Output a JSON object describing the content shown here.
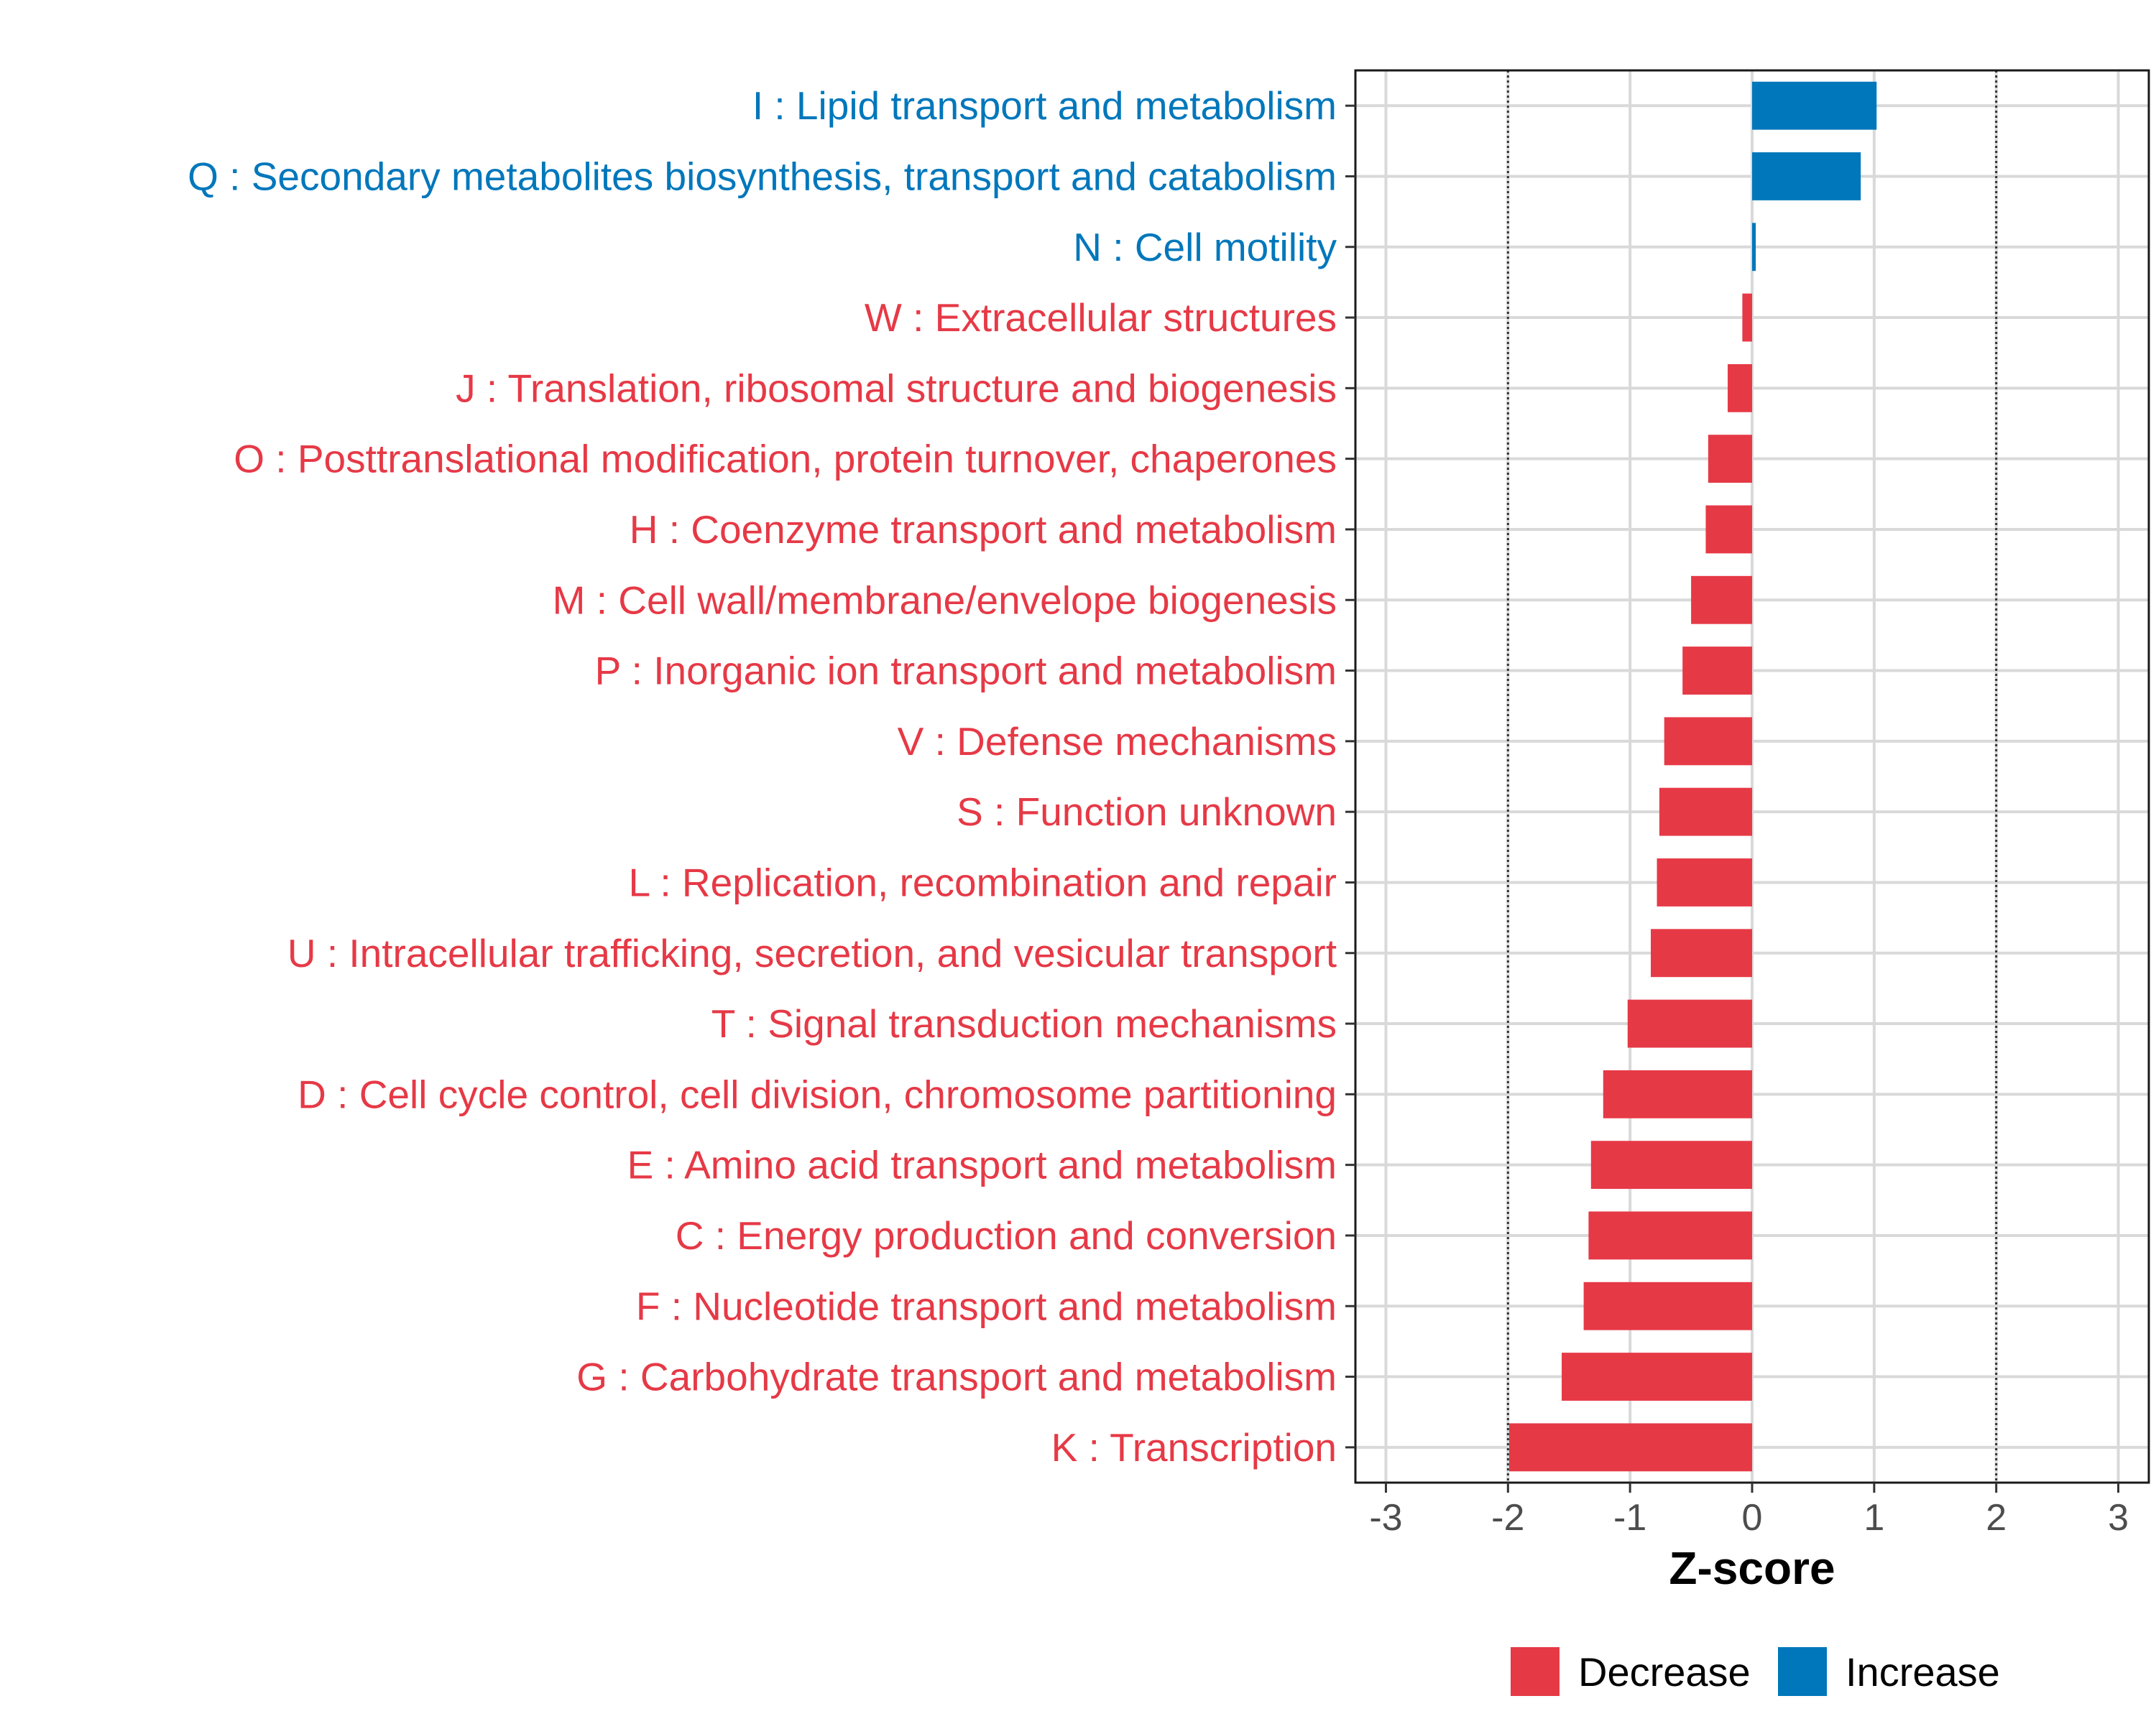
{
  "chart_data": {
    "type": "bar",
    "orientation": "horizontal",
    "xlabel": "Z-score",
    "xlim": [
      -3.25,
      3.25
    ],
    "xticks": [
      -3,
      -2,
      -1,
      0,
      1,
      2,
      3
    ],
    "xtick_labels": [
      "-3",
      "-2",
      "-1",
      "0",
      "1",
      "2",
      "3"
    ],
    "reference_lines": [
      -2,
      2
    ],
    "grid": true,
    "legend_position": "bottom",
    "colors": {
      "Decrease": "#E63946",
      "Increase": "#0077BB",
      "grid": "#d9d9d9",
      "refline": "#333333"
    },
    "legend": [
      {
        "label": "Decrease",
        "color": "#E63946"
      },
      {
        "label": "Increase",
        "color": "#0077BB"
      }
    ],
    "categories": [
      "I : Lipid transport and metabolism",
      "Q : Secondary metabolites biosynthesis, transport and catabolism",
      "N : Cell motility",
      "W : Extracellular structures",
      "J : Translation, ribosomal structure and biogenesis",
      "O : Posttranslational modification, protein turnover, chaperones",
      "H : Coenzyme transport and metabolism",
      "M : Cell wall/membrane/envelope biogenesis",
      "P : Inorganic ion transport and metabolism",
      "V : Defense mechanisms",
      "S : Function unknown",
      "L : Replication, recombination and repair",
      "U : Intracellular trafficking, secretion, and vesicular transport",
      "T : Signal transduction mechanisms",
      "D : Cell cycle control, cell division, chromosome partitioning",
      "E : Amino acid transport and metabolism",
      "C : Energy production and conversion",
      "F : Nucleotide transport and metabolism",
      "G : Carbohydrate transport and metabolism",
      "K : Transcription"
    ],
    "values": [
      1.02,
      0.89,
      0.03,
      -0.08,
      -0.2,
      -0.36,
      -0.38,
      -0.5,
      -0.57,
      -0.72,
      -0.76,
      -0.78,
      -0.83,
      -1.02,
      -1.22,
      -1.32,
      -1.34,
      -1.38,
      -1.56,
      -1.99
    ],
    "groups": [
      "Increase",
      "Increase",
      "Increase",
      "Decrease",
      "Decrease",
      "Decrease",
      "Decrease",
      "Decrease",
      "Decrease",
      "Decrease",
      "Decrease",
      "Decrease",
      "Decrease",
      "Decrease",
      "Decrease",
      "Decrease",
      "Decrease",
      "Decrease",
      "Decrease",
      "Decrease"
    ]
  }
}
